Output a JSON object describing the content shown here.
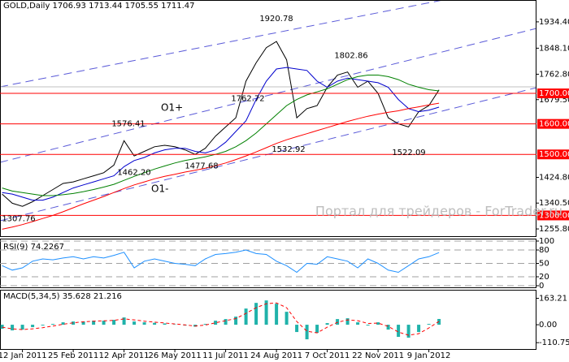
{
  "chart_data": [
    {
      "type": "line",
      "title": "GOLD,Daily 1706.93 1713.44 1705.55 1711.47",
      "categories": [
        null,
        null,
        "12 Jan 2011",
        null,
        null,
        null,
        null,
        "25 Feb 2011",
        null,
        null,
        null,
        null,
        "12 Apr 2011",
        null,
        null,
        null,
        null,
        "26 May 2011",
        null,
        null,
        null,
        null,
        "11 Jul 2011",
        null,
        null,
        null,
        null,
        "24 Aug 2011",
        null,
        null,
        null,
        null,
        "7 Oct 2011",
        null,
        null,
        null,
        null,
        "22 Nov 2011",
        null,
        null,
        null,
        null,
        "9 Jan 2012",
        null
      ],
      "ylim": [
        1232,
        2006
      ],
      "yticks": [
        {
          "value": 1934.4,
          "label": "1934.40"
        },
        {
          "value": 1848.1,
          "label": "1848.10"
        },
        {
          "value": 1762.8,
          "label": "1762.80"
        },
        {
          "value": 1679.5,
          "label": "1679.50"
        },
        {
          "value": 1424.8,
          "label": "1424.80"
        },
        {
          "value": 1340.5,
          "label": "1340.50"
        },
        {
          "value": 1255.8,
          "label": "1255.80"
        }
      ],
      "series": [
        {
          "color": "#000000",
          "values": [
            1370,
            1340,
            1330,
            1345,
            1365,
            1385,
            1405,
            1410,
            1420,
            1430,
            1440,
            1465,
            1545,
            1495,
            1510,
            1525,
            1530,
            1525,
            1515,
            1500,
            1520,
            1560,
            1590,
            1620,
            1740,
            1800,
            1850,
            1870,
            1810,
            1620,
            1650,
            1660,
            1720,
            1760,
            1770,
            1720,
            1740,
            1700,
            1620,
            1600,
            1590,
            1640,
            1660,
            1711.47
          ]
        },
        {
          "color": "#0000cd",
          "values": [
            1375,
            1370,
            1360,
            1350,
            1350,
            1360,
            1375,
            1390,
            1400,
            1410,
            1420,
            1430,
            1460,
            1480,
            1490,
            1505,
            1515,
            1520,
            1520,
            1510,
            1505,
            1515,
            1540,
            1575,
            1610,
            1680,
            1740,
            1780,
            1785,
            1780,
            1775,
            1740,
            1720,
            1740,
            1750,
            1745,
            1740,
            1735,
            1720,
            1680,
            1650,
            1640,
            1645,
            1655
          ]
        },
        {
          "color": "#008000",
          "values": [
            1390,
            1380,
            1375,
            1370,
            1365,
            1365,
            1368,
            1372,
            1378,
            1385,
            1393,
            1402,
            1415,
            1428,
            1440,
            1452,
            1462,
            1472,
            1480,
            1486,
            1492,
            1500,
            1510,
            1525,
            1545,
            1570,
            1600,
            1630,
            1660,
            1680,
            1695,
            1705,
            1715,
            1730,
            1745,
            1755,
            1760,
            1760,
            1755,
            1745,
            1730,
            1720,
            1712,
            1708
          ]
        },
        {
          "color": "#ff0000",
          "values": [
            1255,
            1262,
            1270,
            1280,
            1290,
            1300,
            1312,
            1325,
            1338,
            1350,
            1362,
            1375,
            1388,
            1400,
            1410,
            1420,
            1428,
            1435,
            1442,
            1448,
            1455,
            1463,
            1472,
            1483,
            1495,
            1508,
            1522,
            1536,
            1548,
            1558,
            1568,
            1578,
            1588,
            1598,
            1608,
            1617,
            1625,
            1632,
            1638,
            1643,
            1650,
            1656,
            1662,
            1668
          ]
        }
      ],
      "levels": [
        {
          "value": 1700,
          "label": "1700.00"
        },
        {
          "value": 1600,
          "label": "1600.00"
        },
        {
          "value": 1500,
          "label": "1500.00"
        },
        {
          "value": 1300,
          "label": "1300.00"
        }
      ],
      "level_color": "#ff0000",
      "annotations": [
        1920.78,
        1802.86,
        1762.72,
        1576.41,
        {
          "value": 1462.2,
          "label": "1462.20"
        },
        1477.68,
        1532.92,
        1522.09,
        1307.76
      ],
      "texts": [
        "O1+",
        "O1-"
      ],
      "watermark": "Портал для трейдеров - ForTrader.ru"
    },
    {
      "type": "line",
      "title": "RSI(9) 74.2267",
      "ylim": [
        0,
        100
      ],
      "yticks": [
        100,
        80,
        50,
        20,
        0
      ],
      "grid": true,
      "series": [
        {
          "color": "#1e90ff",
          "values": [
            45,
            35,
            40,
            55,
            60,
            58,
            62,
            65,
            60,
            65,
            62,
            68,
            75,
            40,
            55,
            60,
            55,
            50,
            48,
            45,
            60,
            70,
            72,
            75,
            80,
            72,
            70,
            55,
            45,
            30,
            50,
            48,
            65,
            60,
            55,
            40,
            60,
            50,
            35,
            30,
            45,
            60,
            65,
            74.2267
          ]
        }
      ]
    },
    {
      "type": "bar",
      "title": "MACD(5,34,5) 35.628 21.216",
      "ylim": [
        -150,
        211
      ],
      "yticks": [
        163.21,
        {
          "value": 0,
          "label": "0.00"
        },
        -110.751
      ],
      "color": "#20b2aa",
      "values": [
        -25,
        -35,
        -30,
        -15,
        -5,
        5,
        15,
        20,
        20,
        25,
        25,
        30,
        45,
        20,
        15,
        12,
        8,
        2,
        -5,
        -12,
        5,
        25,
        35,
        50,
        100,
        135,
        150,
        130,
        80,
        -45,
        -90,
        -50,
        10,
        35,
        40,
        15,
        -5,
        15,
        -30,
        -75,
        -80,
        -45,
        5,
        35.628
      ],
      "series": [
        {
          "color": "#ff0000",
          "dashed": true,
          "values": [
            -15,
            -25,
            -30,
            -25,
            -18,
            -8,
            3,
            12,
            18,
            22,
            24,
            27,
            36,
            30,
            22,
            16,
            11,
            5,
            -1,
            -8,
            -2,
            12,
            25,
            38,
            70,
            105,
            130,
            135,
            105,
            20,
            -40,
            -50,
            -15,
            15,
            30,
            25,
            8,
            10,
            -10,
            -45,
            -65,
            -55,
            -20,
            21.216
          ]
        }
      ]
    }
  ]
}
